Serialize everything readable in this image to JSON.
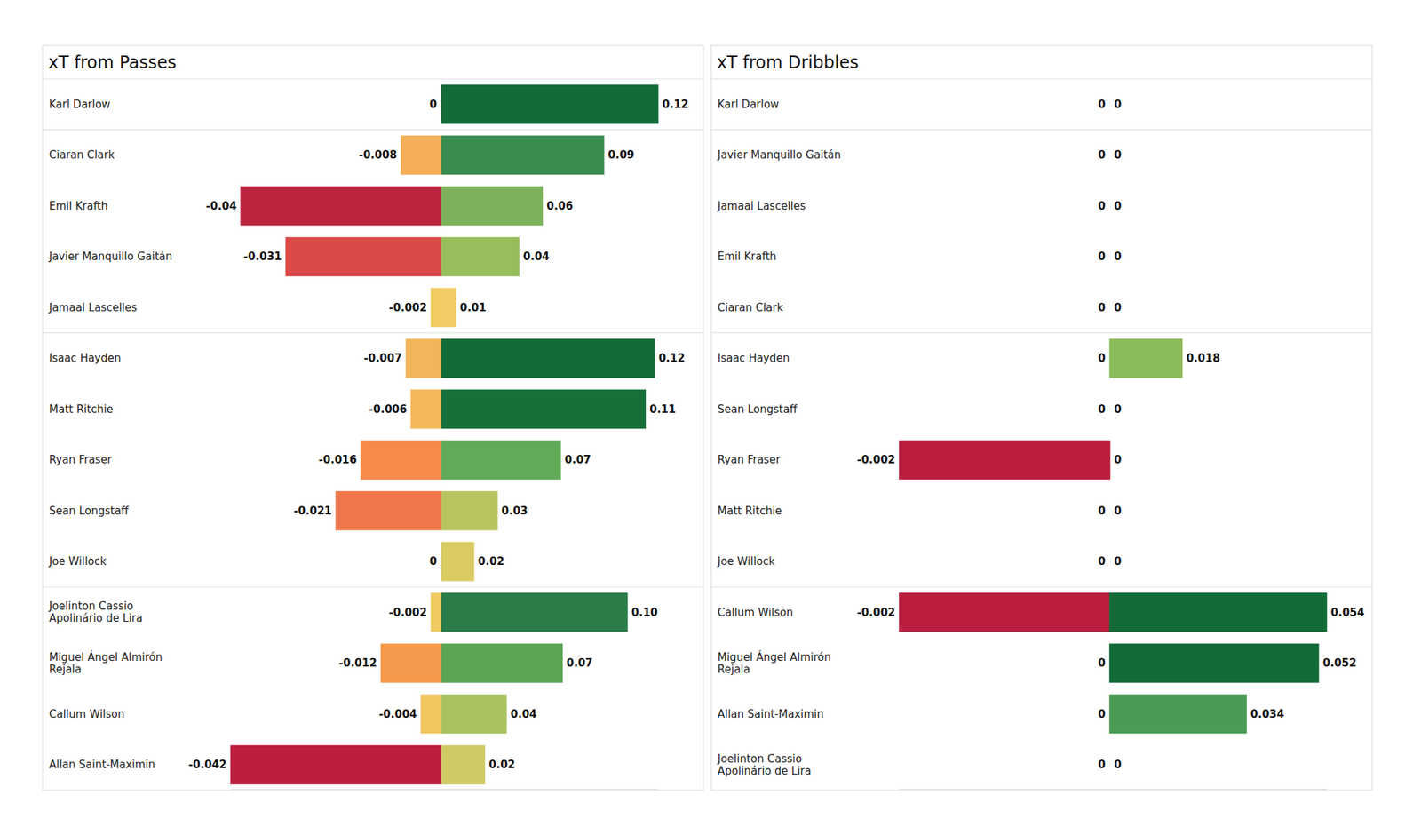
{
  "chart_data": [
    {
      "type": "bar",
      "orientation": "horizontal",
      "title": "xT from Passes",
      "categories": [
        "Karl Darlow",
        "Ciaran Clark",
        "Emil Krafth",
        "Javier Manquillo Gaitán",
        "Jamaal Lascelles",
        "Isaac Hayden",
        "Matt Ritchie",
        "Ryan Fraser",
        "Sean Longstaff",
        "Joe Willock",
        "Joelinton Cassio Apolinário de Lira",
        "Miguel Ángel Almirón Rejala",
        "Callum Wilson",
        "Allan Saint-Maximin"
      ],
      "series": [
        {
          "values": [
            0,
            -0.008,
            -0.04,
            -0.031,
            -0.002,
            -0.007,
            -0.006,
            -0.016,
            -0.021,
            0,
            -0.002,
            -0.012,
            -0.004,
            -0.042
          ],
          "colors": [
            "#f3d36e",
            "#f4ae58",
            "#bc2440",
            "#d94a48",
            "#f3cb63",
            "#f3b55a",
            "#f4b85a",
            "#f68a4a",
            "#ef764b",
            "#f3d36e",
            "#f1cc63",
            "#f59a4d",
            "#f1c75f",
            "#bb1e3e"
          ]
        },
        {
          "values": [
            0.12,
            0.09,
            0.056,
            0.043,
            0.008,
            0.118,
            0.113,
            0.066,
            0.031,
            0.018,
            0.103,
            0.067,
            0.036,
            0.024
          ],
          "value_labels": [
            "0.12",
            "0.09",
            "0.06",
            "0.04",
            "0.01",
            "0.12",
            "0.11",
            "0.07",
            "0.03",
            "0.02",
            "0.10",
            "0.07",
            "0.04",
            "0.02"
          ],
          "colors": [
            "#136b38",
            "#3a8b4f",
            "#7cb35a",
            "#97be5b",
            "#f2cc65",
            "#136b38",
            "#177039",
            "#62a95a",
            "#b7c45f",
            "#dbcb63",
            "#2a7d48",
            "#5ca556",
            "#a8c35f",
            "#cfca65"
          ]
        }
      ],
      "xlim": [
        -0.042,
        0.12
      ],
      "data_labels": true,
      "tick_labels": false,
      "grid": false
    },
    {
      "type": "bar",
      "orientation": "horizontal",
      "title": "xT from Dribbles",
      "categories": [
        "Karl Darlow",
        "Javier Manquillo Gaitán",
        "Jamaal Lascelles",
        "Emil Krafth",
        "Ciaran Clark",
        "Isaac Hayden",
        "Sean Longstaff",
        "Ryan Fraser",
        "Matt Ritchie",
        "Joe Willock",
        "Callum Wilson",
        "Miguel Ángel Almirón Rejala",
        "Allan Saint-Maximin",
        "Joelinton Cassio Apolinário de Lira"
      ],
      "series": [
        {
          "values": [
            0,
            0,
            0,
            0,
            0,
            0,
            0,
            -0.002,
            0,
            0,
            -0.002,
            0,
            0,
            0
          ],
          "colors": [
            "#f3d36e",
            "#f3d36e",
            "#f3d36e",
            "#f3d36e",
            "#f3d36e",
            "#f3d36e",
            "#f3d36e",
            "#bb1e3e",
            "#f3d36e",
            "#f3d36e",
            "#bb1e3e",
            "#f3d36e",
            "#f3d36e",
            "#f3d36e"
          ]
        },
        {
          "values": [
            0,
            0,
            0,
            0,
            0,
            0.018,
            0,
            0,
            0,
            0,
            0.054,
            0.052,
            0.034,
            0
          ],
          "colors": [
            "#f3d36e",
            "#f3d36e",
            "#f3d36e",
            "#f3d36e",
            "#f3d36e",
            "#8cbb5a",
            "#f3d36e",
            "#f3d36e",
            "#f3d36e",
            "#f3d36e",
            "#136b38",
            "#136b38",
            "#4a9b55",
            "#f3d36e"
          ]
        }
      ],
      "xlim": [
        -0.002,
        0.054
      ],
      "data_labels": true,
      "tick_labels": false,
      "grid": false
    }
  ]
}
